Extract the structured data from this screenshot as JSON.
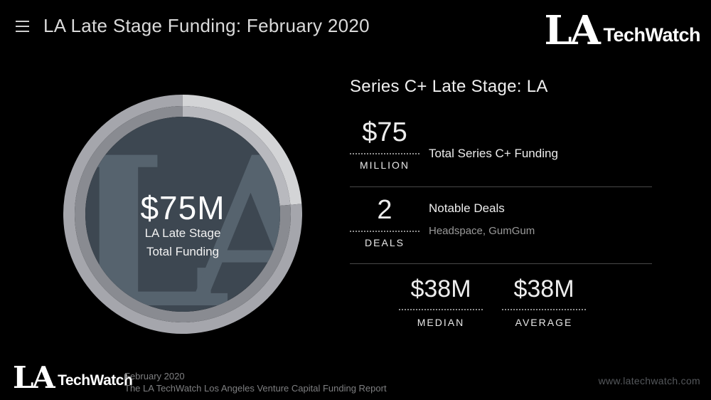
{
  "header": {
    "title": "LA Late Stage Funding: February 2020",
    "logo": {
      "la": "LA",
      "name": "TechWatch"
    }
  },
  "chart_data": {
    "type": "pie",
    "title": "LA Late Stage Funding: February 2020",
    "subtitle": "Series C+ Late Stage: LA",
    "center_total": "$75M",
    "center_label": "LA Late Stage Total Funding",
    "slices": [
      {
        "label": "highlight-segment",
        "start_deg": 0,
        "end_deg": 85
      },
      {
        "label": "base-segment",
        "start_deg": 85,
        "end_deg": 360
      }
    ],
    "stats": [
      {
        "value": 75,
        "unit": "MILLION",
        "label": "Total Series C+ Funding"
      },
      {
        "value": 2,
        "unit": "DEALS",
        "label": "Notable Deals",
        "detail": "Headspace, GumGum"
      },
      {
        "value": "$38M",
        "label": "MEDIAN"
      },
      {
        "value": "$38M",
        "label": "AVERAGE"
      }
    ],
    "legend": false
  },
  "donut": {
    "watermark": "LA",
    "center_value": "$75M",
    "center_label_line1": "LA Late Stage",
    "center_label_line2": "Total Funding",
    "fill_color": "#3d4751",
    "watermark_color": "#56636e",
    "segments": [
      {
        "name": "highlight",
        "start_deg": 0,
        "end_deg": 85,
        "outer_color": "#d3d4d6",
        "inner_color": "#b8b9be"
      },
      {
        "name": "base",
        "start_deg": 85,
        "end_deg": 360,
        "outer_color": "#a5a6ac",
        "inner_color": "#898b91"
      }
    ]
  },
  "panel": {
    "heading": "Series C+ Late Stage: LA",
    "rows": [
      {
        "value": "$75",
        "unit": "MILLION",
        "description": "Total Series C+ Funding"
      },
      {
        "value": "2",
        "unit": "DEALS",
        "description": "Notable Deals",
        "subdescription": "Headspace, GumGum"
      }
    ],
    "summary_stats": [
      {
        "value": "$38M",
        "label": "MEDIAN"
      },
      {
        "value": "$38M",
        "label": "AVERAGE"
      }
    ]
  },
  "footer": {
    "logo": {
      "la": "LA",
      "name": "TechWatch"
    },
    "date": "February 2020",
    "report_title": "The LA TechWatch Los Angeles Venture Capital Funding Report",
    "website": "www.latechwatch.com"
  }
}
